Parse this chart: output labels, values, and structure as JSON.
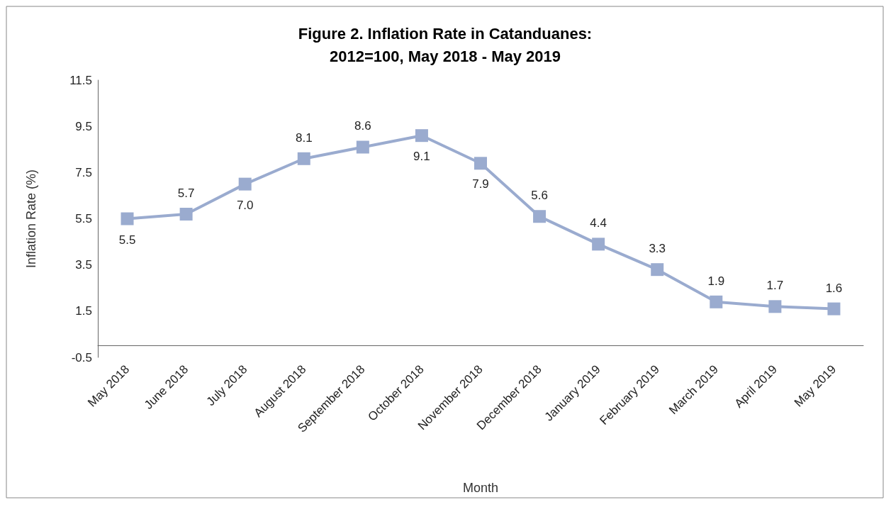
{
  "chart_data": {
    "type": "line",
    "title": "Figure 2. Inflation Rate in Catanduanes:\n2012=100, May 2018 - May 2019",
    "xlabel": "Month",
    "ylabel": "Inflation Rate (%)",
    "categories": [
      "May 2018",
      "June 2018",
      "July 2018",
      "August 2018",
      "September 2018",
      "October 2018",
      "November 2018",
      "December 2018",
      "January 2019",
      "February 2019",
      "March 2019",
      "April 2019",
      "May 2019"
    ],
    "series": [
      {
        "color": "#9aabcf",
        "values": [
          5.5,
          5.7,
          7.0,
          8.1,
          8.6,
          9.1,
          7.9,
          5.6,
          4.4,
          3.3,
          1.9,
          1.7,
          1.6
        ],
        "value_labels": [
          "5.5",
          "5.7",
          "7.0",
          "8.1",
          "8.6",
          "9.1",
          "7.9",
          "5.6",
          "4.4",
          "3.3",
          "1.9",
          "1.7",
          "1.6"
        ]
      }
    ],
    "ylim": [
      -0.5,
      11.5
    ],
    "yticks": [
      -0.5,
      1.5,
      3.5,
      5.5,
      7.5,
      9.5,
      11.5
    ],
    "grid": false,
    "marker": "square",
    "line_style": "solid"
  }
}
